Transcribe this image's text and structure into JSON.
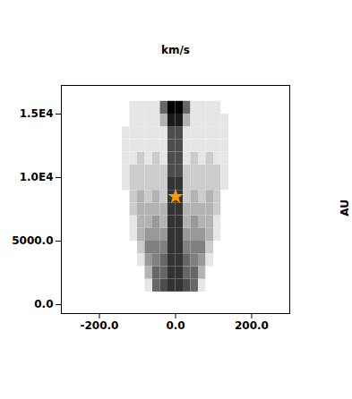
{
  "chart_data": {
    "type": "heatmap",
    "title": "km/s",
    "y_label": "AU",
    "xlim": [
      -300,
      300
    ],
    "ylim": [
      -700,
      17250
    ],
    "xticks": [
      {
        "value": -200,
        "label": "-200.0"
      },
      {
        "value": 0,
        "label": "0.0"
      },
      {
        "value": 200,
        "label": "200.0"
      }
    ],
    "yticks": [
      {
        "value": 0,
        "label": "0.0"
      },
      {
        "value": 5000,
        "label": "5000.0"
      },
      {
        "value": 10000,
        "label": "1.0E4"
      },
      {
        "value": 15000,
        "label": "1.5E4"
      }
    ],
    "color": "#000000",
    "zlim": [
      0,
      1
    ],
    "x_edges": [
      -140,
      -120,
      -100,
      -80,
      -60,
      -40,
      -20,
      0,
      20,
      40,
      60,
      80,
      100,
      120,
      140
    ],
    "y_edges": [
      1000,
      2000,
      3000,
      4000,
      5000,
      6000,
      7000,
      8000,
      9000,
      10000,
      11000,
      12000,
      13000,
      14000,
      15000,
      16000
    ],
    "cells": [
      [
        0,
        0,
        0,
        0.1,
        0.6,
        0.7,
        0.8,
        0.8,
        0.7,
        0.6,
        0.1,
        0,
        0,
        0
      ],
      [
        0,
        0,
        0,
        0.3,
        0.6,
        0.6,
        0.8,
        0.8,
        0.6,
        0.6,
        0.3,
        0,
        0,
        0
      ],
      [
        0,
        0,
        0.1,
        0.4,
        0.5,
        0.6,
        0.8,
        0.8,
        0.6,
        0.5,
        0.4,
        0.1,
        0,
        0
      ],
      [
        0,
        0,
        0.2,
        0.5,
        0.5,
        0.5,
        0.8,
        0.8,
        0.5,
        0.5,
        0.5,
        0.2,
        0,
        0
      ],
      [
        0,
        0.1,
        0.3,
        0.4,
        0.4,
        0.4,
        0.8,
        0.8,
        0.4,
        0.4,
        0.4,
        0.3,
        0.1,
        0
      ],
      [
        0,
        0.1,
        0.3,
        0.3,
        0.4,
        0.3,
        0.8,
        0.8,
        0.3,
        0.4,
        0.3,
        0.3,
        0.1,
        0
      ],
      [
        0,
        0.2,
        0.3,
        0.3,
        0.3,
        0.3,
        0.8,
        0.8,
        0.3,
        0.3,
        0.3,
        0.3,
        0.2,
        0
      ],
      [
        0,
        0.2,
        0.3,
        0.2,
        0.3,
        0.2,
        0.8,
        0.8,
        0.2,
        0.3,
        0.2,
        0.3,
        0.2,
        0
      ],
      [
        0.1,
        0.2,
        0.2,
        0.2,
        0.2,
        0.2,
        0.8,
        0.8,
        0.2,
        0.2,
        0.2,
        0.2,
        0.2,
        0.1
      ],
      [
        0.1,
        0.2,
        0.2,
        0.2,
        0.2,
        0.2,
        0.7,
        0.7,
        0.2,
        0.2,
        0.2,
        0.2,
        0.2,
        0.1
      ],
      [
        0.1,
        0.1,
        0.2,
        0.1,
        0.2,
        0.1,
        0.7,
        0.7,
        0.1,
        0.2,
        0.1,
        0.2,
        0.1,
        0.1
      ],
      [
        0.1,
        0.1,
        0.1,
        0.1,
        0.1,
        0.1,
        0.7,
        0.7,
        0.1,
        0.1,
        0.1,
        0.1,
        0.1,
        0.1
      ],
      [
        0.1,
        0.1,
        0.1,
        0.1,
        0.1,
        0.1,
        0.7,
        0.7,
        0.1,
        0.1,
        0.1,
        0.1,
        0.1,
        0.1
      ],
      [
        0,
        0.1,
        0.1,
        0.1,
        0.1,
        0.3,
        0.9,
        0.9,
        0.3,
        0.1,
        0.1,
        0.1,
        0.1,
        0.1
      ],
      [
        0,
        0.1,
        0.1,
        0.1,
        0.1,
        0.6,
        1,
        1,
        0.6,
        0.1,
        0.1,
        0.1,
        0.1,
        0
      ]
    ],
    "series": [
      {
        "type": "scatter",
        "x": [
          0
        ],
        "y": [
          8500
        ],
        "color": "#ff9900",
        "marker": "star"
      }
    ]
  }
}
